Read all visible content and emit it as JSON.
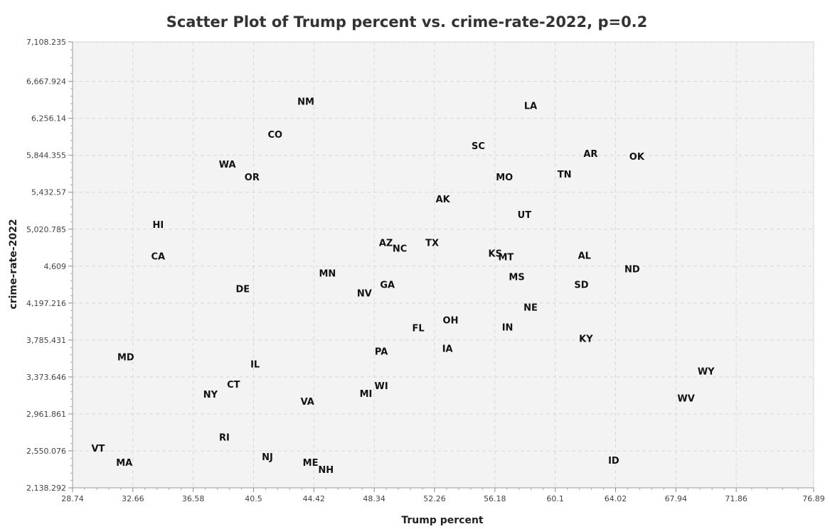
{
  "chart_data": {
    "type": "scatter",
    "title": "Scatter Plot of Trump percent vs. crime-rate-2022, p=0.2",
    "xlabel": "Trump percent",
    "ylabel": "crime-rate-2022",
    "xlim": [
      28.74,
      76.89
    ],
    "ylim": [
      2138.292,
      7108.235
    ],
    "x_ticks": [
      "28.74",
      "32.66",
      "36.58",
      "40.5",
      "44.42",
      "48.34",
      "52.26",
      "56.18",
      "60.1",
      "64.02",
      "67.94",
      "71.86",
      "76.89"
    ],
    "y_ticks": [
      "2,138.292",
      "2,550.076",
      "2,961.861",
      "3,373.646",
      "3,785.431",
      "4,197.216",
      "4,609",
      "5,020.785",
      "5,432.57",
      "5,844.355",
      "6,256.14",
      "6,667.924",
      "7,108.235"
    ],
    "grid": true,
    "legend": "none",
    "points": [
      {
        "label": "NM",
        "x": 43.9,
        "y": 6447
      },
      {
        "label": "LA",
        "x": 58.5,
        "y": 6399
      },
      {
        "label": "CO",
        "x": 41.9,
        "y": 6081
      },
      {
        "label": "SC",
        "x": 55.1,
        "y": 5952
      },
      {
        "label": "AR",
        "x": 62.4,
        "y": 5865
      },
      {
        "label": "OK",
        "x": 65.4,
        "y": 5834
      },
      {
        "label": "WA",
        "x": 38.8,
        "y": 5747
      },
      {
        "label": "TN",
        "x": 60.7,
        "y": 5636
      },
      {
        "label": "OR",
        "x": 40.4,
        "y": 5605
      },
      {
        "label": "MO",
        "x": 56.8,
        "y": 5605
      },
      {
        "label": "AK",
        "x": 52.8,
        "y": 5360
      },
      {
        "label": "UT",
        "x": 58.1,
        "y": 5186
      },
      {
        "label": "HI",
        "x": 34.3,
        "y": 5075
      },
      {
        "label": "AZ",
        "x": 49.1,
        "y": 4871
      },
      {
        "label": "TX",
        "x": 52.1,
        "y": 4871
      },
      {
        "label": "NC",
        "x": 50.0,
        "y": 4808
      },
      {
        "label": "KS",
        "x": 56.2,
        "y": 4753
      },
      {
        "label": "CA",
        "x": 34.3,
        "y": 4721
      },
      {
        "label": "AL",
        "x": 62.0,
        "y": 4729
      },
      {
        "label": "MT",
        "x": 56.9,
        "y": 4713
      },
      {
        "label": "ND",
        "x": 65.1,
        "y": 4579
      },
      {
        "label": "MN",
        "x": 45.3,
        "y": 4531
      },
      {
        "label": "MS",
        "x": 57.6,
        "y": 4492
      },
      {
        "label": "GA",
        "x": 49.2,
        "y": 4405
      },
      {
        "label": "SD",
        "x": 61.8,
        "y": 4405
      },
      {
        "label": "DE",
        "x": 39.8,
        "y": 4357
      },
      {
        "label": "NV",
        "x": 47.7,
        "y": 4310
      },
      {
        "label": "NE",
        "x": 58.5,
        "y": 4153
      },
      {
        "label": "OH",
        "x": 53.3,
        "y": 4011
      },
      {
        "label": "FL",
        "x": 51.2,
        "y": 3924
      },
      {
        "label": "IN",
        "x": 57.0,
        "y": 3932
      },
      {
        "label": "KY",
        "x": 62.1,
        "y": 3805
      },
      {
        "label": "IA",
        "x": 53.1,
        "y": 3695
      },
      {
        "label": "PA",
        "x": 48.8,
        "y": 3663
      },
      {
        "label": "MD",
        "x": 32.2,
        "y": 3600
      },
      {
        "label": "IL",
        "x": 40.6,
        "y": 3521
      },
      {
        "label": "WY",
        "x": 69.9,
        "y": 3442
      },
      {
        "label": "CT",
        "x": 39.2,
        "y": 3292
      },
      {
        "label": "WI",
        "x": 48.8,
        "y": 3276
      },
      {
        "label": "NY",
        "x": 37.7,
        "y": 3181
      },
      {
        "label": "MI",
        "x": 47.8,
        "y": 3189
      },
      {
        "label": "WV",
        "x": 68.6,
        "y": 3141
      },
      {
        "label": "VA",
        "x": 44.0,
        "y": 3102
      },
      {
        "label": "RI",
        "x": 38.6,
        "y": 2705
      },
      {
        "label": "VT",
        "x": 30.4,
        "y": 2581
      },
      {
        "label": "NJ",
        "x": 41.4,
        "y": 2487
      },
      {
        "label": "ID",
        "x": 63.9,
        "y": 2447
      },
      {
        "label": "MA",
        "x": 32.1,
        "y": 2423
      },
      {
        "label": "ME",
        "x": 44.2,
        "y": 2423
      },
      {
        "label": "NH",
        "x": 45.2,
        "y": 2344
      }
    ]
  }
}
